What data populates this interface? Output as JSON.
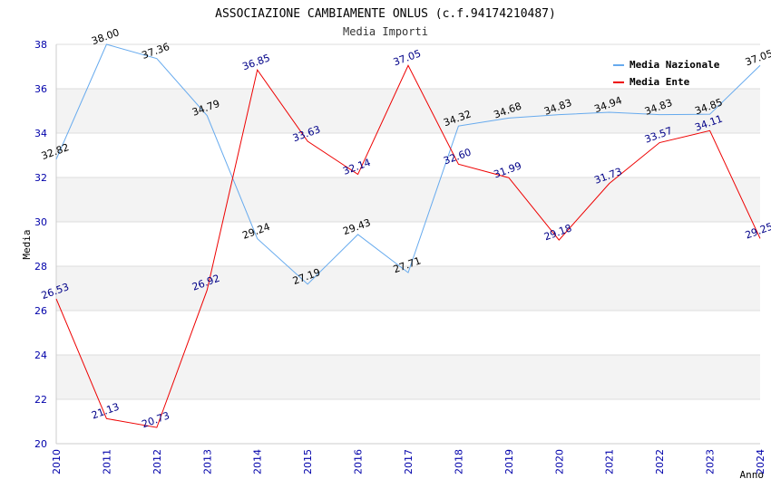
{
  "chart_data": {
    "type": "line",
    "title": "ASSOCIAZIONE CAMBIAMENTE ONLUS (c.f.94174210487)",
    "subtitle": "Media Importi",
    "xlabel": "Anno",
    "ylabel": "Media",
    "ylim": [
      20,
      38
    ],
    "yticks": [
      20,
      22,
      24,
      26,
      28,
      30,
      32,
      34,
      36,
      38
    ],
    "categories": [
      "2010",
      "2011",
      "2012",
      "2013",
      "2014",
      "2015",
      "2016",
      "2017",
      "2018",
      "2019",
      "2020",
      "2021",
      "2022",
      "2023",
      "2024"
    ],
    "legend_position": "top-right",
    "series": [
      {
        "name": "Media Nazionale",
        "color": "#66aaee",
        "label_color": "#000000",
        "values": [
          32.82,
          38.0,
          37.36,
          34.79,
          29.24,
          27.19,
          29.43,
          27.71,
          34.32,
          34.68,
          34.83,
          34.94,
          34.83,
          34.85,
          37.05
        ],
        "labels": [
          "32.82",
          "38.00",
          "37.36",
          "34.79",
          "29.24",
          "27.19",
          "29.43",
          "27.71",
          "34.32",
          "34.68",
          "34.83",
          "34.94",
          "34.83",
          "34.85",
          "37.05"
        ]
      },
      {
        "name": "Media Ente",
        "color": "#ee0000",
        "label_color": "#000088",
        "values": [
          26.53,
          21.13,
          20.73,
          26.92,
          36.85,
          33.63,
          32.14,
          37.05,
          32.6,
          31.99,
          29.18,
          31.73,
          33.57,
          34.11,
          29.25
        ],
        "labels": [
          "26.53",
          "21.13",
          "20.73",
          "26.92",
          "36.85",
          "33.63",
          "32.14",
          "37.05",
          "32.60",
          "31.99",
          "29.18",
          "31.73",
          "33.57",
          "34.11",
          "29.25"
        ]
      }
    ]
  }
}
